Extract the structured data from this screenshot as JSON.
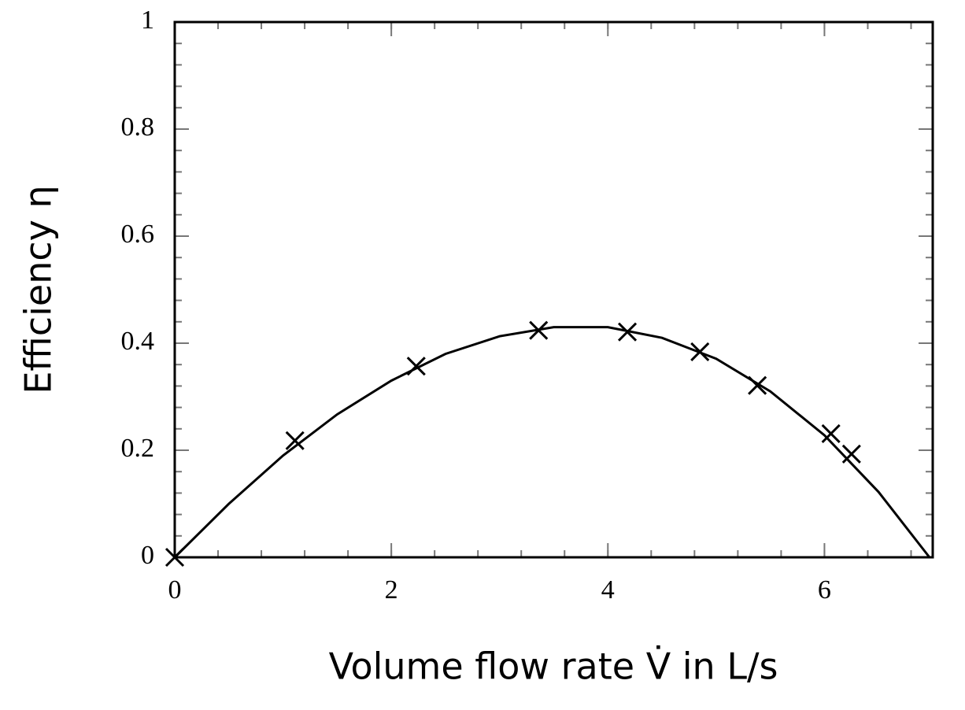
{
  "chart_data": {
    "type": "scatter",
    "x_label": "Volume flow rate V̇ in L/s",
    "y_label": "Efficiency η",
    "points": {
      "x": [
        0,
        1.11,
        2.23,
        3.36,
        4.18,
        4.85,
        5.38,
        6.06,
        6.25
      ],
      "values": [
        0,
        0.218,
        0.357,
        0.424,
        0.421,
        0.384,
        0.321,
        0.231,
        0.193
      ],
      "color": "#000000"
    },
    "curve": {
      "x": [
        0,
        0.5,
        1,
        1.5,
        2,
        2.5,
        3,
        3.5,
        4,
        4.5,
        5,
        5.5,
        6,
        6.5,
        6.97
      ],
      "values": [
        0,
        0.1,
        0.19,
        0.267,
        0.33,
        0.38,
        0.413,
        0.43,
        0.43,
        0.41,
        0.371,
        0.31,
        0.228,
        0.122,
        0
      ],
      "color": "#000000"
    },
    "xlim": [
      0,
      7
    ],
    "xticks": [
      0,
      2,
      4,
      6
    ],
    "ylim": [
      0,
      1
    ],
    "yticks": [
      0,
      0.2,
      0.4,
      0.6,
      0.8,
      1
    ]
  }
}
